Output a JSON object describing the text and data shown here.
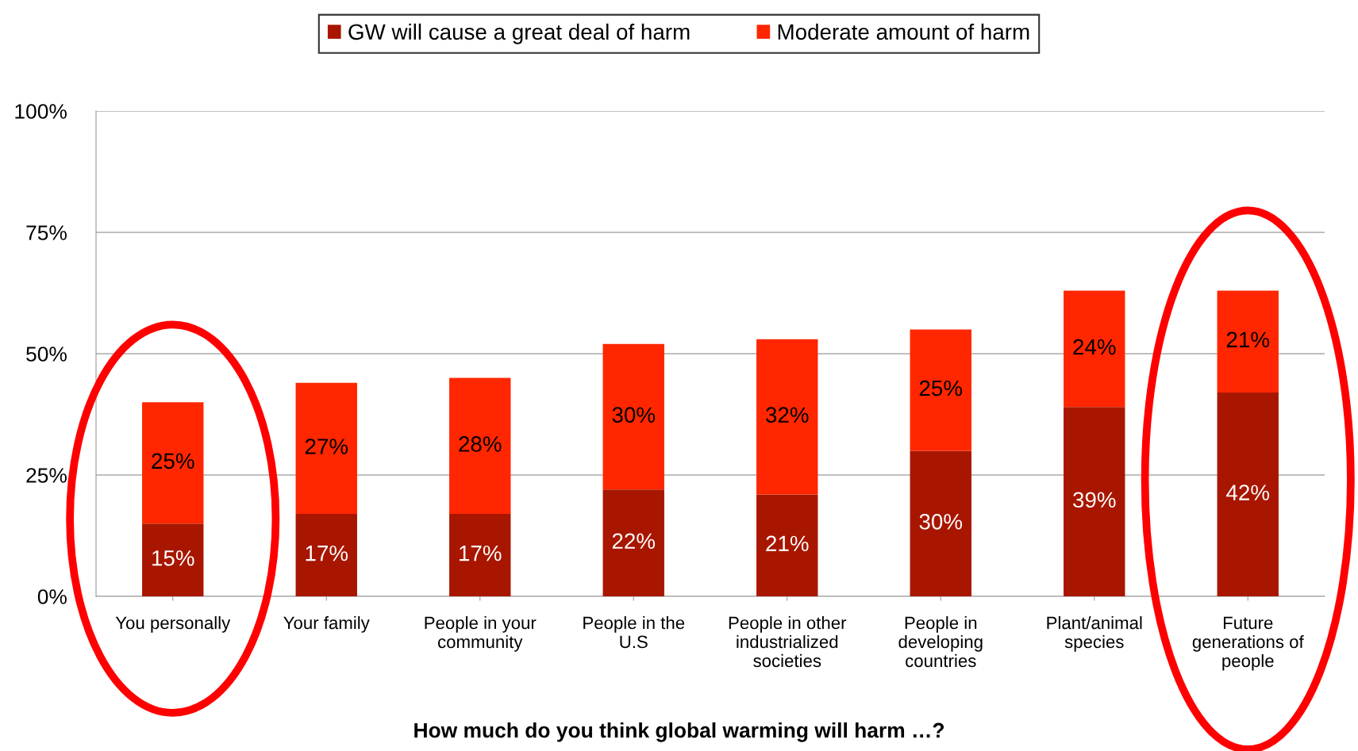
{
  "chart_data": {
    "type": "bar",
    "stacked": true,
    "categories": [
      "You personally",
      "Your family",
      "People in your\ncommunity",
      "People in the\nU.S",
      "People in other\nindustrialized\nsocieties",
      "People in\ndeveloping\ncountries",
      "Plant/animal\nspecies",
      "Future\ngenerations of\npeople"
    ],
    "series": [
      {
        "name": "GW will cause a great deal of harm",
        "color": "#a81600",
        "values": [
          15,
          17,
          17,
          22,
          21,
          30,
          39,
          42
        ]
      },
      {
        "name": "Moderate amount of harm",
        "color": "#ff2600",
        "values": [
          25,
          27,
          28,
          30,
          32,
          25,
          24,
          21
        ]
      }
    ],
    "ylim": [
      0,
      100
    ],
    "yticks": [
      {
        "value": 0,
        "label": "0%"
      },
      {
        "value": 25,
        "label": "25%"
      },
      {
        "value": 50,
        "label": "50%"
      },
      {
        "value": 75,
        "label": "75%"
      },
      {
        "value": 100,
        "label": "100%"
      }
    ],
    "value_labels": [
      [
        "15%",
        "17%",
        "17%",
        "22%",
        "21%",
        "30%",
        "39%",
        "42%"
      ],
      [
        "25%",
        "27%",
        "28%",
        "30%",
        "32%",
        "25%",
        "24%",
        "21%"
      ]
    ],
    "grid": "y",
    "legend": "top",
    "annotations": [
      "How much do you think global warming will harm …?"
    ]
  }
}
